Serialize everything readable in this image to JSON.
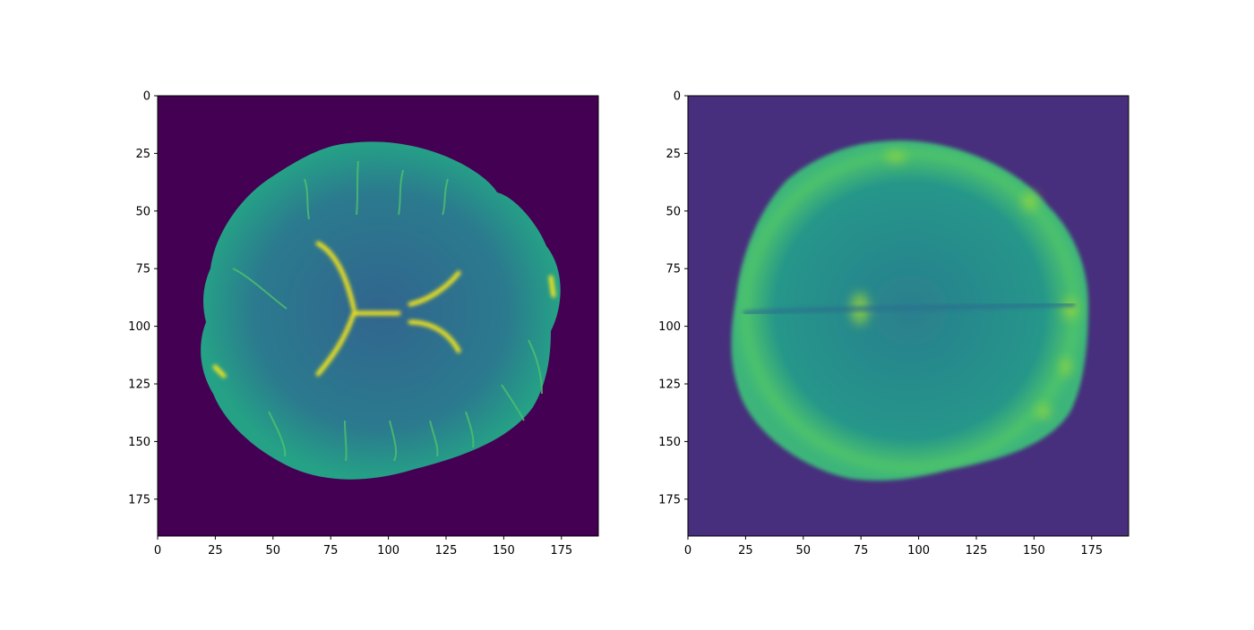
{
  "chart_data": [
    {
      "type": "heatmap",
      "title": "",
      "xlabel": "",
      "ylabel": "",
      "xlim": [
        0,
        191
      ],
      "ylim": [
        191,
        0
      ],
      "xticks": [
        0,
        25,
        50,
        75,
        100,
        125,
        150,
        175
      ],
      "yticks": [
        0,
        25,
        50,
        75,
        100,
        125,
        150,
        175
      ],
      "xticklabels": [
        "0",
        "25",
        "50",
        "75",
        "100",
        "125",
        "150",
        "175"
      ],
      "yticklabels": [
        "0",
        "25",
        "50",
        "75",
        "100",
        "125",
        "150",
        "175"
      ],
      "colormap": "viridis",
      "background_color": "#440154",
      "description_values": {
        "tissue_color": "#2f6a8e",
        "bright_color": "#f5e51f"
      }
    },
    {
      "type": "heatmap",
      "title": "",
      "xlabel": "",
      "ylabel": "",
      "xlim": [
        0,
        191
      ],
      "ylim": [
        191,
        0
      ],
      "xticks": [
        0,
        25,
        50,
        75,
        100,
        125,
        150,
        175
      ],
      "yticks": [
        0,
        25,
        50,
        75,
        100,
        125,
        150,
        175
      ],
      "xticklabels": [
        "0",
        "25",
        "50",
        "75",
        "100",
        "125",
        "150",
        "175"
      ],
      "yticklabels": [
        "0",
        "25",
        "50",
        "75",
        "100",
        "125",
        "150",
        "175"
      ],
      "colormap": "viridis",
      "background_color": "#472f7d",
      "description_values": {
        "tissue_color": "#2f8a8c",
        "bright_color": "#8fd444"
      }
    }
  ]
}
